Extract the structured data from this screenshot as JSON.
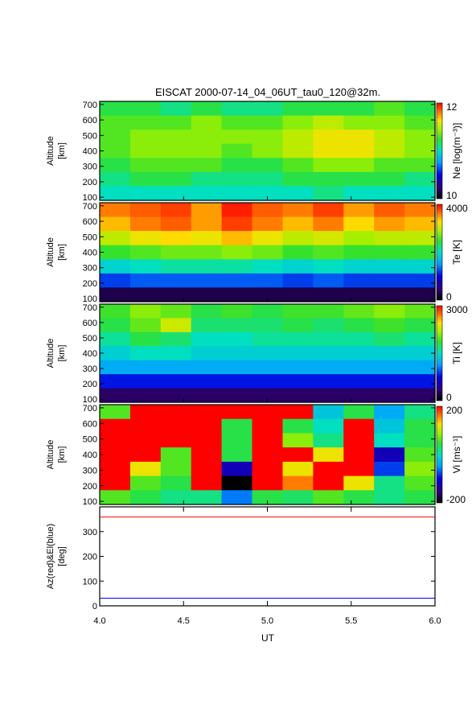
{
  "title": "EISCAT 2000-07-14_04_06UT_tau0_120@32m.",
  "chart_data": {
    "type": "heatmap",
    "title": "EISCAT 2000-07-14_04_06UT_tau0_120@32m.",
    "xlabel": "UT",
    "xlim": [
      4.0,
      6.0
    ],
    "xticks": [
      4.0,
      4.5,
      5.0,
      5.5,
      6.0
    ],
    "xtick_labels": [
      "4.0",
      "4.5",
      "5.0",
      "5.5",
      "6.0"
    ],
    "panels": [
      {
        "id": "ne",
        "ylabel_line1": "Altitude",
        "ylabel_line2": "[km]",
        "ylim": [
          80,
          720
        ],
        "yticks": [
          100,
          200,
          300,
          400,
          500,
          600,
          700
        ],
        "ytick_labels": [
          "100",
          "200",
          "300",
          "400",
          "500",
          "600",
          "700"
        ],
        "colorbar_label": "Ne [log(m⁻³)]",
        "colorbar_range": [
          10,
          12
        ],
        "colorbar_labels": [
          "12",
          "10"
        ],
        "values": [
          [
            11.2,
            11.2,
            11.1,
            11.2,
            11.1,
            11.1,
            11.2,
            11.2,
            11.2,
            11.3,
            11.2
          ],
          [
            11.3,
            11.3,
            11.3,
            11.4,
            11.3,
            11.3,
            11.4,
            11.5,
            11.4,
            11.4,
            11.3
          ],
          [
            11.3,
            11.4,
            11.4,
            11.4,
            11.4,
            11.4,
            11.5,
            11.6,
            11.6,
            11.5,
            11.4
          ],
          [
            11.3,
            11.4,
            11.4,
            11.4,
            11.3,
            11.4,
            11.5,
            11.6,
            11.6,
            11.5,
            11.4
          ],
          [
            11.2,
            11.3,
            11.3,
            11.3,
            11.2,
            11.2,
            11.3,
            11.4,
            11.4,
            11.3,
            11.3
          ],
          [
            11.1,
            11.2,
            11.2,
            11.1,
            11.1,
            11.1,
            11.2,
            11.2,
            11.2,
            11.2,
            11.1
          ],
          [
            11.0,
            11.0,
            11.0,
            11.0,
            11.0,
            11.0,
            11.0,
            11.1,
            11.0,
            11.0,
            11.0
          ]
        ]
      },
      {
        "id": "te",
        "ylabel_line1": "Altitude",
        "ylabel_line2": "[km]",
        "ylim": [
          80,
          720
        ],
        "yticks": [
          100,
          200,
          300,
          400,
          500,
          600,
          700
        ],
        "ytick_labels": [
          "100",
          "200",
          "300",
          "400",
          "500",
          "600",
          "700"
        ],
        "colorbar_label": "Te [K]",
        "colorbar_range": [
          0,
          4000
        ],
        "colorbar_labels": [
          "4000",
          "0"
        ],
        "values": [
          [
            3600,
            3700,
            3800,
            3500,
            3900,
            3700,
            3600,
            3800,
            3500,
            3700,
            3600
          ],
          [
            3400,
            3600,
            3700,
            3500,
            3800,
            3600,
            3400,
            3600,
            3300,
            3500,
            3400
          ],
          [
            3000,
            3200,
            3300,
            3200,
            3400,
            3200,
            3000,
            3100,
            2900,
            3000,
            3000
          ],
          [
            2500,
            2600,
            2700,
            2700,
            2800,
            2700,
            2500,
            2600,
            2500,
            2500,
            2500
          ],
          [
            1900,
            2000,
            2100,
            2100,
            2100,
            2000,
            1900,
            2000,
            1900,
            1900,
            1900
          ],
          [
            1200,
            1300,
            1300,
            1300,
            1300,
            1300,
            1200,
            1300,
            1200,
            1200,
            1200
          ],
          [
            300,
            300,
            300,
            300,
            300,
            300,
            300,
            300,
            300,
            300,
            300
          ]
        ]
      },
      {
        "id": "ti",
        "ylabel_line1": "Altitude",
        "ylabel_line2": "[km]",
        "ylim": [
          80,
          720
        ],
        "yticks": [
          100,
          200,
          300,
          400,
          500,
          600,
          700
        ],
        "ytick_labels": [
          "100",
          "200",
          "300",
          "400",
          "500",
          "600",
          "700"
        ],
        "colorbar_label": "Ti [K]",
        "colorbar_range": [
          0,
          3000
        ],
        "colorbar_labels": [
          "3000",
          "0"
        ],
        "values": [
          [
            1900,
            2100,
            2000,
            1800,
            1900,
            1800,
            1900,
            1900,
            2000,
            2100,
            2000
          ],
          [
            1800,
            2000,
            2300,
            1700,
            1700,
            1700,
            1800,
            1700,
            1800,
            1900,
            1800
          ],
          [
            1600,
            1800,
            1700,
            1500,
            1500,
            1600,
            1600,
            1600,
            1600,
            1700,
            1600
          ],
          [
            1400,
            1500,
            1500,
            1400,
            1400,
            1400,
            1400,
            1400,
            1400,
            1400,
            1400
          ],
          [
            1200,
            1200,
            1200,
            1200,
            1200,
            1200,
            1200,
            1200,
            1200,
            1200,
            1200
          ],
          [
            800,
            800,
            800,
            800,
            800,
            800,
            800,
            800,
            800,
            800,
            800
          ],
          [
            300,
            300,
            300,
            300,
            300,
            300,
            300,
            300,
            300,
            300,
            300
          ]
        ]
      },
      {
        "id": "vi",
        "ylabel_line1": "Altitude",
        "ylabel_line2": "[km]",
        "ylim": [
          80,
          720
        ],
        "yticks": [
          100,
          200,
          300,
          400,
          500,
          600,
          700
        ],
        "ytick_labels": [
          "100",
          "200",
          "300",
          "400",
          "500",
          "600",
          "700"
        ],
        "colorbar_label": "Vi [ms⁻¹]",
        "colorbar_range": [
          -200,
          200
        ],
        "colorbar_labels": [
          "200",
          "-200"
        ],
        "values": [
          [
            60,
            200,
            200,
            200,
            200,
            200,
            200,
            -20,
            40,
            -40,
            20
          ],
          [
            200,
            200,
            200,
            200,
            40,
            200,
            40,
            0,
            200,
            -20,
            40
          ],
          [
            200,
            200,
            200,
            200,
            40,
            200,
            80,
            20,
            200,
            0,
            40
          ],
          [
            200,
            200,
            60,
            200,
            40,
            200,
            200,
            120,
            200,
            -120,
            60
          ],
          [
            200,
            120,
            60,
            200,
            -120,
            200,
            120,
            200,
            200,
            -80,
            80
          ],
          [
            200,
            60,
            40,
            200,
            -200,
            200,
            160,
            200,
            120,
            20,
            60
          ],
          [
            60,
            40,
            20,
            20,
            -60,
            40,
            30,
            60,
            40,
            20,
            40
          ]
        ]
      }
    ],
    "angle_panel": {
      "ylabel_line1": "Az(red)&El(blue)",
      "ylabel_line2": "[deg]",
      "ylim": [
        0,
        400
      ],
      "yticks": [
        0,
        100,
        200,
        300
      ],
      "ytick_labels": [
        "0",
        "100",
        "200",
        "300"
      ],
      "series": [
        {
          "color": "#ff0000",
          "x": [
            4.0,
            6.0
          ],
          "y": [
            359,
            359
          ]
        },
        {
          "color": "#0000ff",
          "x": [
            4.0,
            6.0
          ],
          "y": [
            31,
            31
          ]
        }
      ]
    }
  }
}
